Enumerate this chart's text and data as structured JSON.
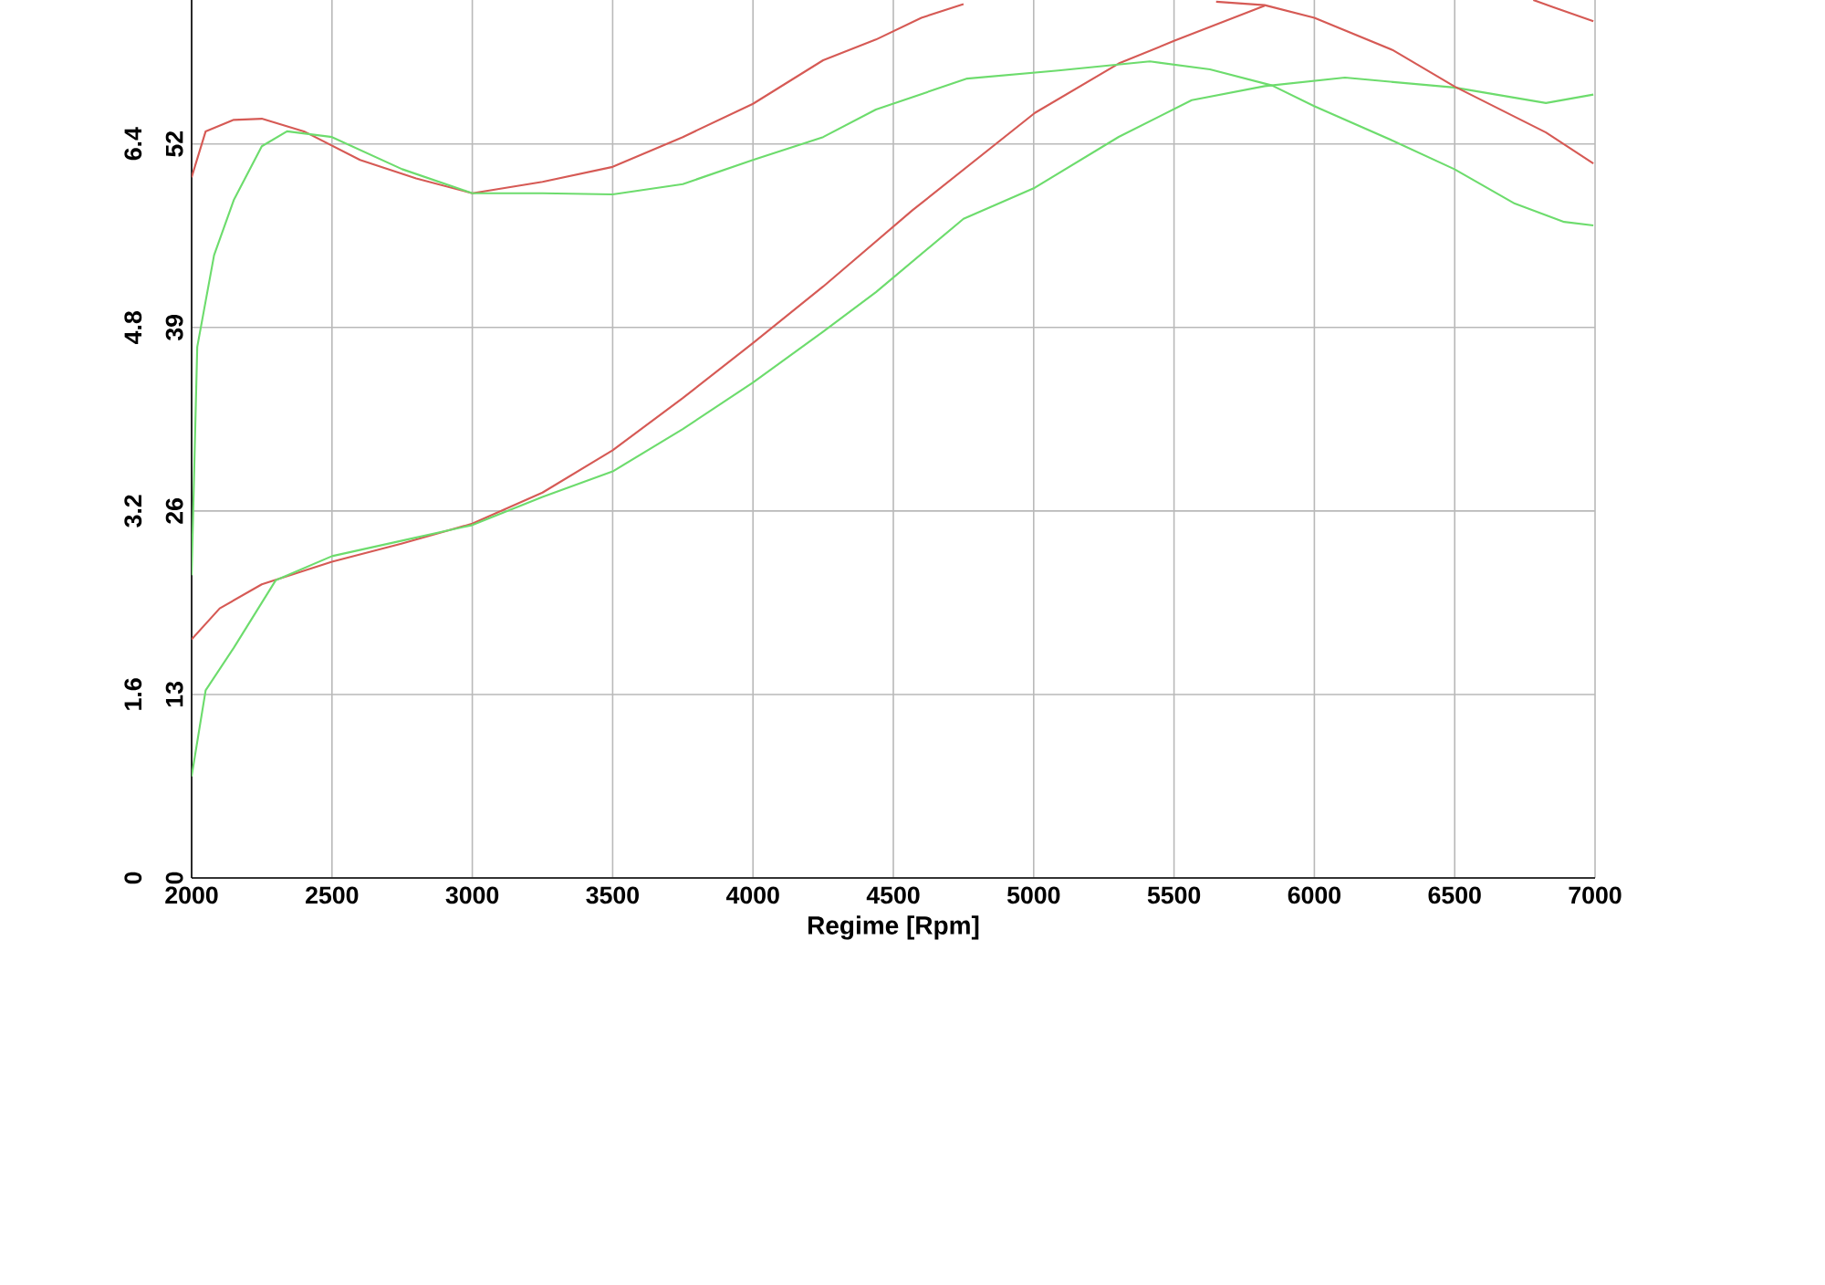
{
  "chart_data": {
    "type": "line",
    "xlabel": "Regime [Rpm]",
    "xlim": [
      2000,
      7000
    ],
    "ylim": [
      0,
      62.2
    ],
    "y2lim": [
      0,
      7.655
    ],
    "xticks": [
      2000,
      2500,
      3000,
      3500,
      4000,
      4500,
      5000,
      5500,
      6000,
      6500,
      7000
    ],
    "yticks": [
      0,
      13,
      26,
      39,
      52
    ],
    "y2ticks": [
      0,
      1.6,
      3.2,
      4.8,
      6.4
    ],
    "grid": true,
    "marker": "none",
    "line_style": "solid",
    "series": [
      {
        "color": "#d65a55",
        "x": [
          2000,
          2100,
          2250,
          2500,
          2750,
          3000,
          3250,
          3500,
          3750,
          4000,
          4250,
          4568,
          5004,
          5303,
          5500,
          5823,
          6000,
          6780,
          6850,
          6994
        ],
        "values": [
          16.9,
          19.1,
          20.8,
          22.4,
          23.7,
          25.1,
          27.3,
          30.3,
          34.0,
          37.9,
          41.9,
          47.3,
          54.2,
          57.7,
          59.3,
          61.8,
          null,
          62.2,
          61.7,
          60.7
        ]
      },
      {
        "color": "#6ddc6d",
        "x": [
          2000,
          2050,
          2150,
          2300,
          2500,
          2750,
          3000,
          3250,
          3500,
          3750,
          4000,
          4250,
          4438,
          4750,
          5004,
          5303,
          5563,
          5823,
          6109,
          6499,
          6825,
          6994
        ],
        "values": [
          7.2,
          13.3,
          16.3,
          21.1,
          22.8,
          23.9,
          25.0,
          27.0,
          28.8,
          31.8,
          35.1,
          38.7,
          41.5,
          46.7,
          48.9,
          52.5,
          55.1,
          56.1,
          56.7,
          56.0,
          54.9,
          55.5
        ]
      },
      {
        "axis": "y2",
        "color": "#d65a55",
        "x": [
          2000,
          2050,
          2150,
          2250,
          2400,
          2600,
          2800,
          3000,
          3250,
          3500,
          3750,
          4000,
          4250,
          4438,
          4600,
          4750,
          5200,
          5650,
          5823,
          6000,
          6278,
          6500,
          6825,
          6994
        ],
        "values": [
          6.11,
          6.51,
          6.61,
          6.62,
          6.51,
          6.26,
          6.1,
          5.97,
          6.07,
          6.2,
          6.46,
          6.75,
          7.13,
          7.31,
          7.5,
          7.62,
          null,
          7.64,
          7.61,
          7.5,
          7.22,
          6.9,
          6.5,
          6.23
        ]
      },
      {
        "axis": "y2",
        "color": "#6ddc6d",
        "x": [
          2000,
          2020,
          2080,
          2150,
          2250,
          2340,
          2500,
          2750,
          3000,
          3250,
          3500,
          3750,
          4000,
          4250,
          4438,
          4763,
          5088,
          5414,
          5628,
          5849,
          5999,
          6278,
          6499,
          6714,
          6890,
          6994
        ],
        "values": [
          2.64,
          4.63,
          5.43,
          5.91,
          6.38,
          6.51,
          6.46,
          6.18,
          5.97,
          5.97,
          5.96,
          6.05,
          6.26,
          6.46,
          6.7,
          6.97,
          7.04,
          7.12,
          7.05,
          6.91,
          6.73,
          6.43,
          6.18,
          5.88,
          5.72,
          5.69
        ]
      }
    ]
  }
}
